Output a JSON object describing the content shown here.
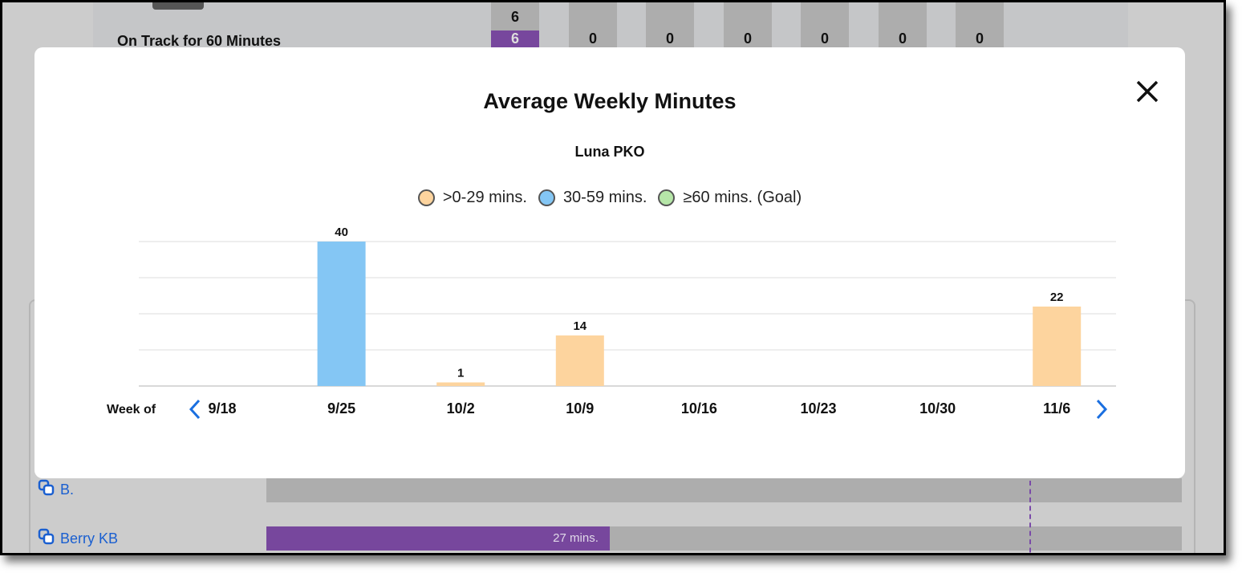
{
  "background": {
    "on_track_label": "On Track for 60 Minutes",
    "top_count": "6",
    "counts": [
      "6",
      "0",
      "0",
      "0",
      "0",
      "0",
      "0"
    ],
    "students": [
      {
        "name": "B.",
        "minutes_label": ""
      },
      {
        "name": "Berry KB",
        "minutes_label": "27 mins."
      }
    ],
    "berry_progress_fraction": 0.375
  },
  "modal": {
    "title": "Average Weekly Minutes",
    "subtitle": "Luna PKO",
    "close_icon": "close-icon",
    "week_of_label": "Week of",
    "prev_icon": "chevron-left-icon",
    "next_icon": "chevron-right-icon"
  },
  "chart_data": {
    "type": "bar",
    "title": "Average Weekly Minutes",
    "subtitle": "Luna PKO",
    "xlabel": "Week of",
    "ylabel": "",
    "ylim": [
      0,
      40
    ],
    "grid": true,
    "legend_placement": "top-center",
    "legend": [
      {
        "label": ">0-29 mins.",
        "color": "#fdd49e"
      },
      {
        "label": "30-59 mins.",
        "color": "#84c6f4"
      },
      {
        "label": "≥60 mins. (Goal)",
        "color": "#b6e6a8"
      }
    ],
    "categories": [
      "9/18",
      "9/25",
      "10/2",
      "10/9",
      "10/16",
      "10/23",
      "10/30",
      "11/6"
    ],
    "values": [
      0,
      40,
      1,
      14,
      0,
      0,
      0,
      22
    ]
  }
}
